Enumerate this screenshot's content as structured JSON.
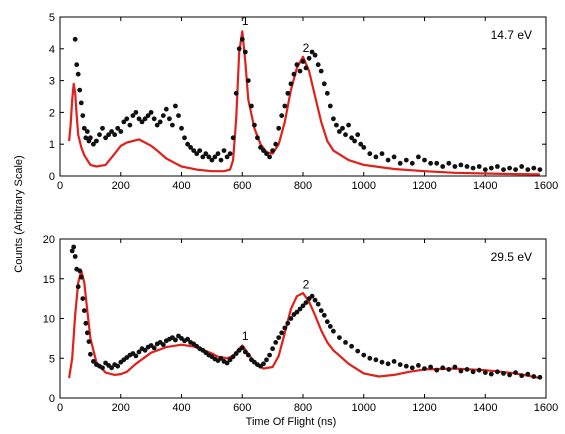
{
  "figure": {
    "ylabel": "Counts (Arbitrary Scale)",
    "xlabel": "Time Of Flight (ns)"
  },
  "colors": {
    "model_line": "#e0201b",
    "data_points": "#111111",
    "frame": "#000000"
  },
  "chart_data": [
    {
      "type": "line",
      "title": "",
      "energy_label": "14.7 eV",
      "xlim": [
        0,
        1600
      ],
      "ylim": [
        0,
        5
      ],
      "xticks": [
        0,
        200,
        400,
        600,
        800,
        1000,
        1200,
        1400,
        1600
      ],
      "yticks": [
        0,
        1,
        2,
        3,
        4,
        5
      ],
      "grid": false,
      "annotations": [
        {
          "text": "1",
          "x": 600,
          "y": 4.75
        },
        {
          "text": "2",
          "x": 800,
          "y": 3.9
        }
      ],
      "series": [
        {
          "kind": "line",
          "x": [
            30,
            35,
            40,
            45,
            50,
            55,
            60,
            70,
            80,
            100,
            120,
            150,
            180,
            200,
            220,
            240,
            260,
            280,
            300,
            320,
            350,
            380,
            400,
            450,
            500,
            540,
            560,
            570,
            580,
            590,
            600,
            610,
            620,
            640,
            660,
            680,
            700,
            720,
            740,
            760,
            780,
            800,
            820,
            840,
            860,
            880,
            900,
            950,
            1000,
            1100,
            1200,
            1300,
            1400,
            1500,
            1580
          ],
          "y": [
            1.1,
            1.6,
            2.4,
            2.9,
            2.6,
            1.9,
            1.3,
            0.9,
            0.65,
            0.35,
            0.3,
            0.35,
            0.7,
            0.95,
            1.05,
            1.1,
            1.15,
            1.05,
            0.95,
            0.8,
            0.55,
            0.4,
            0.3,
            0.2,
            0.15,
            0.15,
            0.2,
            0.5,
            1.8,
            3.9,
            4.55,
            3.6,
            2.4,
            1.5,
            1.0,
            0.75,
            0.7,
            1.0,
            1.7,
            2.7,
            3.4,
            3.75,
            3.3,
            2.5,
            1.7,
            1.1,
            0.8,
            0.5,
            0.35,
            0.22,
            0.15,
            0.1,
            0.08,
            0.06,
            0.05
          ]
        },
        {
          "kind": "scatter",
          "x": [
            50,
            55,
            60,
            65,
            70,
            75,
            80,
            85,
            90,
            95,
            100,
            110,
            120,
            130,
            140,
            150,
            160,
            170,
            180,
            190,
            200,
            210,
            220,
            230,
            240,
            250,
            260,
            270,
            280,
            290,
            300,
            310,
            320,
            330,
            340,
            350,
            360,
            370,
            380,
            390,
            400,
            410,
            420,
            430,
            440,
            450,
            460,
            470,
            480,
            490,
            500,
            510,
            520,
            530,
            540,
            550,
            560,
            570,
            580,
            590,
            600,
            610,
            620,
            630,
            640,
            650,
            660,
            670,
            680,
            690,
            700,
            710,
            720,
            730,
            740,
            750,
            760,
            770,
            780,
            790,
            800,
            810,
            820,
            830,
            840,
            850,
            860,
            870,
            880,
            890,
            900,
            910,
            920,
            930,
            940,
            950,
            960,
            970,
            980,
            990,
            1000,
            1020,
            1040,
            1060,
            1080,
            1100,
            1120,
            1140,
            1160,
            1180,
            1200,
            1220,
            1240,
            1260,
            1280,
            1300,
            1320,
            1340,
            1360,
            1380,
            1400,
            1420,
            1440,
            1460,
            1480,
            1500,
            1520,
            1540,
            1560,
            1580
          ],
          "y": [
            4.3,
            3.5,
            3.2,
            2.7,
            2.3,
            1.9,
            1.5,
            1.2,
            1.4,
            1.1,
            1.2,
            1.0,
            1.1,
            1.3,
            1.5,
            1.2,
            1.3,
            1.4,
            1.3,
            1.5,
            1.4,
            1.7,
            1.8,
            1.6,
            1.9,
            2.0,
            1.8,
            1.7,
            1.8,
            1.9,
            2.0,
            1.8,
            1.6,
            1.7,
            1.9,
            2.1,
            1.8,
            1.6,
            2.2,
            1.9,
            1.5,
            1.2,
            1.0,
            0.9,
            0.8,
            0.7,
            0.8,
            0.6,
            0.7,
            0.6,
            0.5,
            0.6,
            0.7,
            0.5,
            0.8,
            0.6,
            0.7,
            1.2,
            2.6,
            4.0,
            4.3,
            3.9,
            3.0,
            2.2,
            1.6,
            1.2,
            0.9,
            0.8,
            0.7,
            0.6,
            0.8,
            1.0,
            1.5,
            1.9,
            2.2,
            2.6,
            2.9,
            3.2,
            3.5,
            3.3,
            3.6,
            3.4,
            3.7,
            3.9,
            3.8,
            3.5,
            3.3,
            2.9,
            2.6,
            2.2,
            1.8,
            1.6,
            1.4,
            1.5,
            1.3,
            1.6,
            1.2,
            1.1,
            1.3,
            1.0,
            0.9,
            0.7,
            0.6,
            0.7,
            0.5,
            0.6,
            0.4,
            0.5,
            0.4,
            0.6,
            0.5,
            0.4,
            0.4,
            0.3,
            0.4,
            0.3,
            0.35,
            0.3,
            0.25,
            0.3,
            0.2,
            0.25,
            0.3,
            0.2,
            0.25,
            0.2,
            0.3,
            0.2,
            0.25,
            0.2
          ]
        }
      ]
    },
    {
      "type": "line",
      "title": "",
      "energy_label": "29.5 eV",
      "xlim": [
        0,
        1600
      ],
      "ylim": [
        0,
        20
      ],
      "xticks": [
        0,
        200,
        400,
        600,
        800,
        1000,
        1200,
        1400,
        1600
      ],
      "yticks": [
        0,
        5,
        10,
        15,
        20
      ],
      "grid": false,
      "annotations": [
        {
          "text": "1",
          "x": 600,
          "y": 7.3
        },
        {
          "text": "2",
          "x": 800,
          "y": 13.8
        }
      ],
      "series": [
        {
          "kind": "line",
          "x": [
            30,
            40,
            50,
            60,
            70,
            80,
            90,
            100,
            120,
            150,
            180,
            200,
            220,
            250,
            300,
            350,
            400,
            450,
            500,
            520,
            550,
            570,
            590,
            600,
            610,
            630,
            650,
            670,
            700,
            720,
            740,
            760,
            780,
            800,
            820,
            840,
            860,
            880,
            900,
            950,
            1000,
            1050,
            1100,
            1150,
            1200,
            1300,
            1400,
            1500,
            1580
          ],
          "y": [
            2.5,
            5.0,
            10.5,
            14.5,
            16.0,
            14.5,
            11.0,
            7.5,
            4.5,
            3.2,
            2.9,
            3.0,
            3.3,
            4.3,
            5.7,
            6.4,
            6.7,
            6.4,
            5.6,
            5.2,
            5.0,
            5.3,
            6.2,
            6.6,
            6.1,
            5.0,
            4.2,
            3.7,
            3.9,
            5.3,
            8.2,
            11.2,
            12.8,
            13.2,
            12.1,
            10.4,
            8.5,
            7.0,
            6.0,
            4.3,
            3.1,
            2.7,
            2.9,
            3.3,
            3.6,
            3.7,
            3.5,
            3.1,
            2.5
          ]
        },
        {
          "kind": "scatter",
          "x": [
            40,
            45,
            50,
            55,
            60,
            65,
            70,
            75,
            80,
            85,
            90,
            95,
            100,
            110,
            120,
            130,
            140,
            150,
            160,
            170,
            180,
            190,
            200,
            210,
            220,
            230,
            240,
            250,
            260,
            270,
            280,
            290,
            300,
            310,
            320,
            330,
            340,
            350,
            360,
            370,
            380,
            390,
            400,
            410,
            420,
            430,
            440,
            450,
            460,
            470,
            480,
            490,
            500,
            510,
            520,
            530,
            540,
            550,
            560,
            570,
            580,
            590,
            600,
            610,
            620,
            630,
            640,
            650,
            660,
            670,
            680,
            690,
            700,
            710,
            720,
            730,
            740,
            750,
            760,
            770,
            780,
            790,
            800,
            810,
            820,
            830,
            840,
            850,
            860,
            870,
            880,
            890,
            900,
            920,
            940,
            960,
            980,
            1000,
            1020,
            1040,
            1060,
            1080,
            1100,
            1120,
            1140,
            1160,
            1180,
            1200,
            1220,
            1240,
            1260,
            1280,
            1300,
            1320,
            1340,
            1360,
            1380,
            1400,
            1420,
            1440,
            1460,
            1480,
            1500,
            1520,
            1540,
            1560,
            1580
          ],
          "y": [
            18.5,
            19.0,
            17.8,
            16.2,
            14.0,
            16.0,
            15.2,
            12.5,
            11.0,
            9.4,
            8.2,
            7.1,
            5.5,
            4.6,
            4.2,
            4.0,
            3.8,
            4.4,
            4.1,
            3.8,
            4.2,
            4.0,
            4.5,
            4.8,
            5.1,
            5.4,
            5.6,
            5.3,
            5.8,
            6.2,
            6.0,
            6.4,
            6.6,
            6.3,
            6.8,
            7.0,
            6.7,
            7.2,
            7.4,
            7.6,
            7.3,
            7.8,
            7.5,
            7.2,
            7.4,
            7.0,
            6.8,
            6.5,
            6.2,
            6.0,
            5.7,
            5.4,
            5.2,
            4.9,
            4.7,
            5.0,
            4.6,
            4.4,
            4.8,
            5.2,
            5.6,
            6.0,
            6.3,
            5.8,
            5.4,
            4.8,
            4.5,
            4.2,
            4.0,
            4.3,
            4.8,
            5.4,
            6.2,
            7.0,
            7.6,
            8.2,
            8.8,
            9.4,
            10.0,
            10.5,
            10.8,
            11.2,
            11.6,
            12.0,
            12.5,
            12.8,
            12.3,
            11.8,
            11.0,
            10.4,
            9.6,
            9.0,
            8.4,
            7.6,
            7.0,
            6.5,
            5.9,
            5.4,
            5.0,
            4.8,
            4.5,
            4.3,
            4.6,
            4.2,
            4.0,
            3.8,
            4.1,
            3.7,
            3.9,
            3.5,
            3.8,
            3.6,
            3.9,
            3.4,
            3.6,
            3.3,
            3.5,
            3.2,
            3.0,
            3.3,
            3.1,
            2.9,
            3.2,
            2.8,
            3.0,
            2.7,
            2.6
          ]
        }
      ]
    }
  ]
}
